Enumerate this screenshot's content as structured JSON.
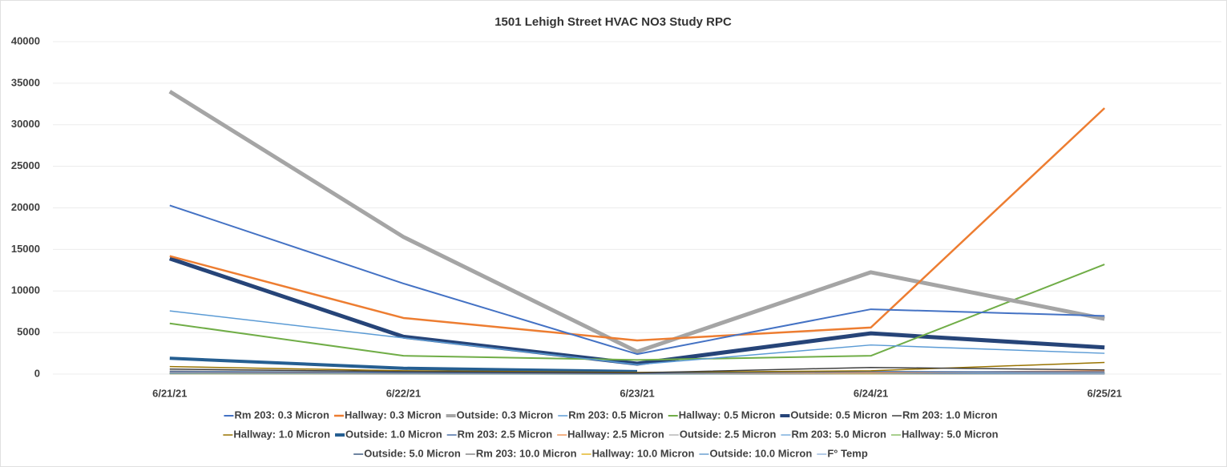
{
  "chart_data": {
    "type": "line",
    "title": "1501 Lehigh Street HVAC NO3 Study RPC",
    "categories": [
      "6/21/21",
      "6/22/21",
      "6/23/21",
      "6/24/21",
      "6/25/21"
    ],
    "ylim": [
      0,
      40000
    ],
    "yticks": [
      0,
      5000,
      10000,
      15000,
      20000,
      25000,
      30000,
      35000,
      40000
    ],
    "grid": true,
    "series": [
      {
        "name": "Rm 203: 0.3 Micron",
        "color": "#4472c4",
        "line_width": 2,
        "values": [
          20300,
          10900,
          2400,
          7800,
          7000
        ]
      },
      {
        "name": "Hallway: 0.3 Micron",
        "color": "#ed7d31",
        "line_width": 2.5,
        "values": [
          14200,
          6750,
          4050,
          5600,
          32000
        ]
      },
      {
        "name": "Outside: 0.3 Micron",
        "color": "#a5a5a5",
        "line_width": 5,
        "values": [
          34000,
          16500,
          2700,
          12250,
          6650
        ]
      },
      {
        "name": "Rm 203: 0.5 Micron",
        "color": "#5b9bd5",
        "line_width": 1.5,
        "values": [
          7600,
          4350,
          1150,
          3500,
          2500
        ]
      },
      {
        "name": "Hallway: 0.5 Micron",
        "color": "#70ad47",
        "line_width": 2,
        "values": [
          6100,
          2200,
          1700,
          2200,
          13200
        ]
      },
      {
        "name": "Outside: 0.5 Micron",
        "color": "#264478",
        "line_width": 5,
        "values": [
          13900,
          4500,
          1250,
          4900,
          3200
        ]
      },
      {
        "name": "Rm 203: 1.0 Micron",
        "color": "#404040",
        "line_width": 1.5,
        "values": [
          600,
          300,
          150,
          800,
          500
        ]
      },
      {
        "name": "Hallway: 1.0 Micron",
        "color": "#997300",
        "line_width": 1.5,
        "values": [
          900,
          400,
          200,
          400,
          1400
        ]
      },
      {
        "name": "Outside: 1.0 Micron",
        "color": "#255e91",
        "line_width": 4,
        "values": [
          1900,
          700,
          300,
          null,
          null
        ]
      },
      {
        "name": "Rm 203: 2.5 Micron",
        "color": "#4a6fa5",
        "line_width": 1.5,
        "values": [
          300,
          150,
          80,
          300,
          250
        ]
      },
      {
        "name": "Hallway: 2.5 Micron",
        "color": "#f1975a",
        "line_width": 1.5,
        "values": [
          250,
          120,
          80,
          150,
          400
        ]
      },
      {
        "name": "Outside: 2.5 Micron",
        "color": "#b7b7b7",
        "line_width": 1.5,
        "values": [
          400,
          200,
          60,
          250,
          150
        ]
      },
      {
        "name": "Rm 203: 5.0 Micron",
        "color": "#7cafdd",
        "line_width": 1.5,
        "values": [
          150,
          80,
          40,
          120,
          100
        ]
      },
      {
        "name": "Hallway: 5.0 Micron",
        "color": "#8cc168",
        "line_width": 1.5,
        "values": [
          120,
          60,
          40,
          80,
          200
        ]
      },
      {
        "name": "Outside: 5.0 Micron",
        "color": "#3d5a80",
        "line_width": 1.5,
        "values": [
          100,
          50,
          20,
          80,
          60
        ]
      },
      {
        "name": "Rm 203: 10.0 Micron",
        "color": "#888888",
        "line_width": 1.5,
        "values": [
          60,
          30,
          15,
          50,
          40
        ]
      },
      {
        "name": "Hallway: 10.0 Micron",
        "color": "#e3b72a",
        "line_width": 1.5,
        "values": [
          50,
          25,
          15,
          30,
          80
        ]
      },
      {
        "name": "Outside: 10.0 Micron",
        "color": "#6aa0d0",
        "line_width": 1.5,
        "values": [
          40,
          20,
          10,
          30,
          25
        ]
      },
      {
        "name": "F° Temp",
        "color": "#9bbbe0",
        "line_width": 1.5,
        "values": [
          78,
          80,
          76,
          82,
          79
        ]
      }
    ]
  }
}
